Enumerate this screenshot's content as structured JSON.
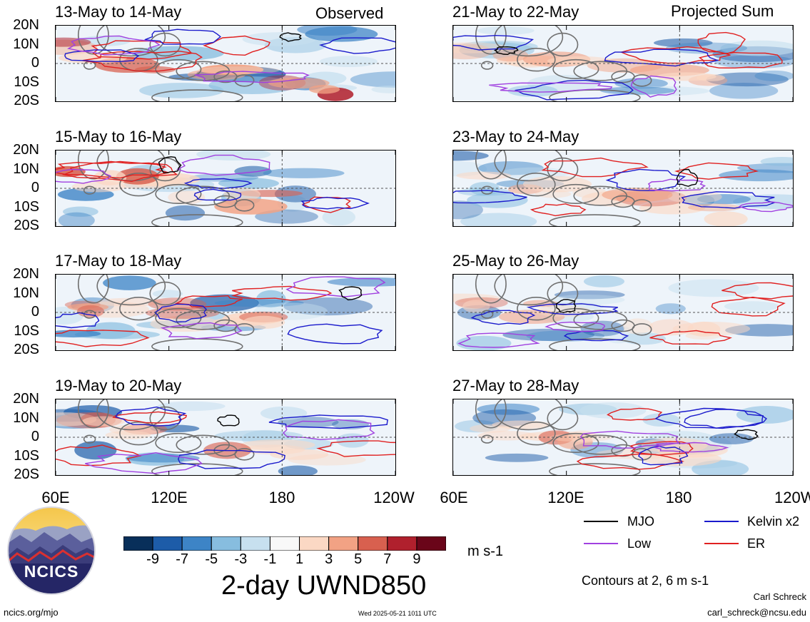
{
  "header": {
    "left_tag": "Observed",
    "right_tag": "Projected Sum"
  },
  "panels": [
    {
      "title": "13-May to 14-May",
      "seed": 1,
      "strength": 1.15
    },
    {
      "title": "21-May to 22-May",
      "seed": 5,
      "strength": 0.6
    },
    {
      "title": "15-May to 16-May",
      "seed": 2,
      "strength": 1.0
    },
    {
      "title": "23-May to 24-May",
      "seed": 6,
      "strength": 0.55
    },
    {
      "title": "17-May to 18-May",
      "seed": 3,
      "strength": 0.95
    },
    {
      "title": "25-May to 26-May",
      "seed": 7,
      "strength": 0.5
    },
    {
      "title": "19-May to 20-May",
      "seed": 4,
      "strength": 0.9
    },
    {
      "title": "27-May to 28-May",
      "seed": 8,
      "strength": 0.5
    }
  ],
  "axes": {
    "lat_labels": [
      "20N",
      "10N",
      "0",
      "10S",
      "20S"
    ],
    "lon_labels": [
      "60E",
      "120E",
      "180",
      "120W"
    ]
  },
  "colorbar": {
    "ticks": [
      "-9",
      "-7",
      "-5",
      "-3",
      "-1",
      "1",
      "3",
      "5",
      "7",
      "9"
    ],
    "colors": [
      "#082f5a",
      "#1d5ca8",
      "#3d84c6",
      "#87bddf",
      "#c7e0ef",
      "#f8f8f8",
      "#fbd8c4",
      "#f2a284",
      "#d8604f",
      "#b0202d",
      "#6a0519"
    ],
    "units": "m s-1",
    "title": "2-day UWND850"
  },
  "legend": {
    "items": [
      {
        "label": "MJO",
        "color": "#000000"
      },
      {
        "label": "Kelvin x2",
        "color": "#1a1acc"
      },
      {
        "label": "Low",
        "color": "#a040e0"
      },
      {
        "label": "ER",
        "color": "#e02020"
      }
    ],
    "contours_note": "Contours at 2, 6 m s-1"
  },
  "logo": {
    "text": "NCICS"
  },
  "footer": {
    "url": "ncics.org/mjo",
    "timestamp": "Wed 2025-05-21 1011 UTC",
    "author": "Carl Schreck",
    "email": "carl_schreck@ncsu.edu"
  }
}
